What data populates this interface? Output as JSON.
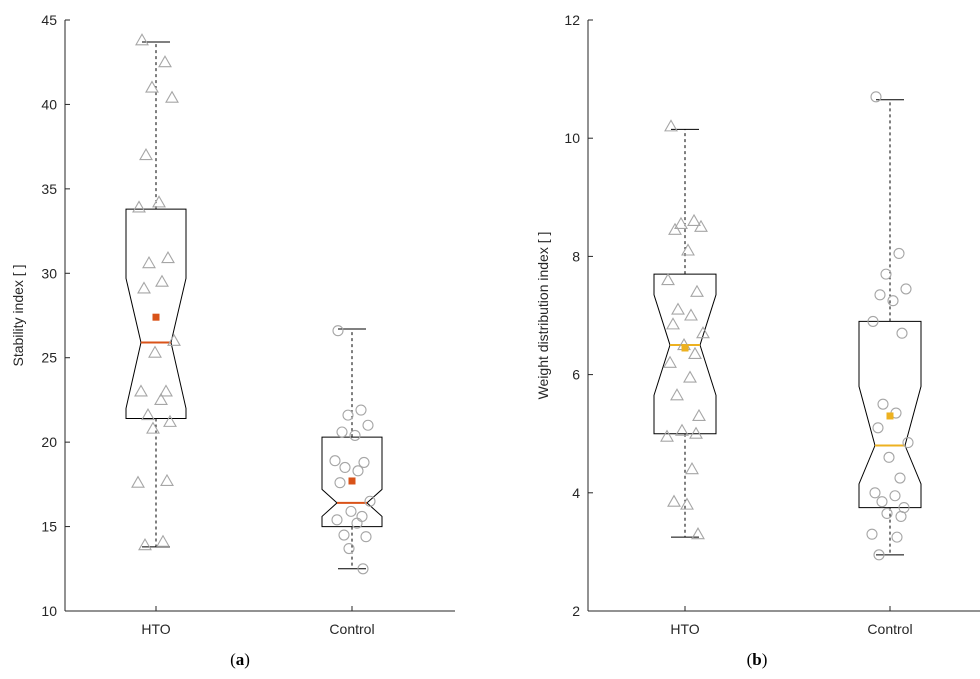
{
  "chart_data": [
    {
      "type": "boxplot",
      "panel_label_open": "(",
      "panel_label_letter": "a",
      "panel_label_close": ")",
      "ylabel": "Stability index [ ]",
      "ylim": [
        10,
        45
      ],
      "yticks": [
        10,
        15,
        20,
        25,
        30,
        35,
        40,
        45
      ],
      "categories": [
        "HTO",
        "Control"
      ],
      "grid": false,
      "mean_color": "#d95319",
      "median_color": "#d95319",
      "boxes": [
        {
          "name": "HTO",
          "marker": "triangle",
          "q1": 21.4,
          "median": 25.9,
          "q3": 33.8,
          "notch_low": 22.0,
          "notch_high": 29.7,
          "whisker_low": 13.8,
          "whisker_high": 43.7,
          "mean": 27.4,
          "points": [
            43.8,
            42.5,
            41.0,
            40.4,
            37.0,
            34.2,
            33.9,
            30.9,
            30.6,
            29.5,
            29.1,
            26.0,
            25.3,
            23.0,
            23.0,
            22.5,
            21.6,
            21.2,
            20.8,
            17.7,
            17.6,
            14.1,
            13.9
          ]
        },
        {
          "name": "Control",
          "marker": "circle",
          "q1": 15.0,
          "median": 16.4,
          "q3": 20.3,
          "notch_low": 15.6,
          "notch_high": 17.2,
          "whisker_low": 12.5,
          "whisker_high": 26.7,
          "mean": 17.7,
          "points": [
            26.6,
            21.9,
            21.6,
            21.0,
            20.6,
            20.4,
            18.9,
            18.8,
            18.5,
            18.3,
            17.6,
            16.5,
            15.9,
            15.6,
            15.4,
            15.2,
            14.5,
            14.4,
            13.7,
            12.5
          ]
        }
      ]
    },
    {
      "type": "boxplot",
      "panel_label_open": "(",
      "panel_label_letter": "b",
      "panel_label_close": ")",
      "ylabel": "Weight distribution index [ ]",
      "ylim": [
        2,
        12
      ],
      "yticks": [
        2,
        4,
        6,
        8,
        10,
        12
      ],
      "categories": [
        "HTO",
        "Control"
      ],
      "grid": false,
      "mean_color": "#edb120",
      "median_color": "#edb120",
      "boxes": [
        {
          "name": "HTO",
          "marker": "triangle",
          "q1": 5.0,
          "median": 6.5,
          "q3": 7.7,
          "notch_low": 5.65,
          "notch_high": 7.35,
          "whisker_low": 3.25,
          "whisker_high": 10.15,
          "mean": 6.45,
          "points": [
            10.2,
            8.6,
            8.55,
            8.5,
            8.45,
            8.1,
            7.6,
            7.4,
            7.1,
            7.0,
            6.85,
            6.7,
            6.5,
            6.35,
            6.2,
            5.95,
            5.65,
            5.3,
            5.05,
            5.0,
            4.95,
            4.4,
            3.85,
            3.8,
            3.3
          ]
        },
        {
          "name": "Control",
          "marker": "circle",
          "q1": 3.75,
          "median": 4.8,
          "q3": 6.9,
          "notch_low": 4.15,
          "notch_high": 5.8,
          "whisker_low": 2.95,
          "whisker_high": 10.65,
          "mean": 5.3,
          "points": [
            10.7,
            8.05,
            7.7,
            7.45,
            7.35,
            7.25,
            6.9,
            6.7,
            5.5,
            5.35,
            5.1,
            4.85,
            4.6,
            4.25,
            4.0,
            3.95,
            3.85,
            3.75,
            3.65,
            3.6,
            3.3,
            3.25,
            2.95
          ]
        }
      ]
    }
  ]
}
